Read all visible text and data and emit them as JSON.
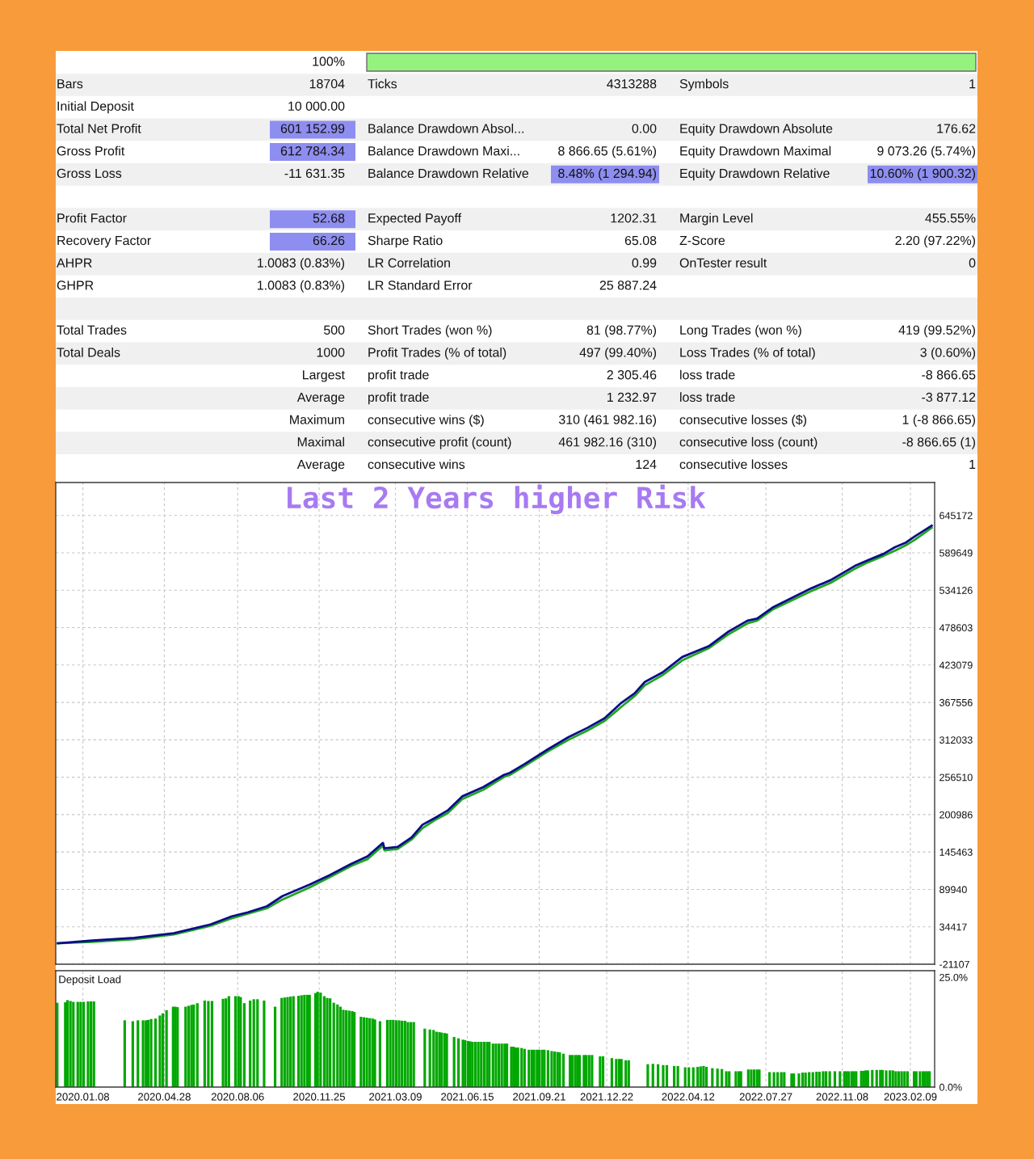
{
  "chart_data": [
    {
      "type": "other",
      "annotations": [
        "100%",
        "Bars",
        "18704",
        "Ticks",
        "4313288",
        "Symbols",
        "1",
        "Initial Deposit",
        "10 000.00",
        "Total Net Profit",
        "601 152.99",
        "Balance Drawdown Absol...",
        "0.00",
        "Equity Drawdown Absolute",
        "176.62",
        "Gross Profit",
        "612 784.34",
        "Balance Drawdown Maxi...",
        "8 866.65 (5.61%)",
        "Equity Drawdown Maximal",
        "9 073.26 (5.74%)",
        "Gross Loss",
        "-11 631.35",
        "Balance Drawdown Relative",
        "8.48% (1 294.94)",
        "Equity Drawdown Relative",
        "10.60% (1 900.32)",
        "Profit Factor",
        "52.68",
        "Expected Payoff",
        "1202.31",
        "Margin Level",
        "455.55%",
        "Recovery Factor",
        "66.26",
        "Sharpe Ratio",
        "65.08",
        "Z-Score",
        "2.20 (97.22%)",
        "AHPR",
        "1.0083 (0.83%)",
        "LR Correlation",
        "0.99",
        "OnTester result",
        "0",
        "GHPR",
        "1.0083 (0.83%)",
        "LR Standard Error",
        "25 887.24",
        "Total Trades",
        "500",
        "Short Trades (won %)",
        "81 (98.77%)",
        "Long Trades (won %)",
        "419 (99.52%)",
        "Total Deals",
        "1000",
        "Profit Trades (% of total)",
        "497 (99.40%)",
        "Loss Trades (% of total)",
        "3 (0.60%)",
        "Largest",
        "profit trade",
        "2 305.46",
        "loss trade",
        "-8 866.65",
        "Average",
        "profit trade",
        "1 232.97",
        "loss trade",
        "-3 877.12",
        "Maximum",
        "consecutive wins ($)",
        "310 (461 982.16)",
        "consecutive losses ($)",
        "1 (-8 866.65)",
        "Maximal",
        "consecutive profit (count)",
        "461 982.16 (310)",
        "consecutive loss (count)",
        "-8 866.65 (1)",
        "Average",
        "consecutive wins",
        "124",
        "consecutive losses",
        "1"
      ]
    },
    {
      "type": "line",
      "title": "Last 2 Years higher Risk",
      "x": [
        "2019-12-05",
        "2020-01-21",
        "2020-03-18",
        "2020-05-11",
        "2020-06-30",
        "2020-07-29",
        "2020-08-20",
        "2020-09-15",
        "2020-10-06",
        "2020-11-12",
        "2020-12-09",
        "2021-01-08",
        "2021-01-30",
        "2021-02-20",
        "2021-02-22",
        "2021-03-12",
        "2021-03-31",
        "2021-04-15",
        "2021-05-02",
        "2021-05-19",
        "2021-06-08",
        "2021-07-07",
        "2021-08-04",
        "2021-08-12",
        "2021-09-01",
        "2021-10-03",
        "2021-10-31",
        "2021-11-26",
        "2021-12-19",
        "2022-01-11",
        "2022-01-29",
        "2022-02-12",
        "2022-03-08",
        "2022-04-04",
        "2022-05-10",
        "2022-06-05",
        "2022-07-02",
        "2022-07-15",
        "2022-08-06",
        "2022-09-27",
        "2022-10-23",
        "2022-11-25",
        "2022-12-14",
        "2023-01-03",
        "2023-01-19",
        "2023-02-03",
        "2023-02-15",
        "2023-03-10"
      ],
      "series": [
        {
          "color": "#1fa61f",
          "values": [
            10000,
            12000,
            16000,
            23000,
            36000,
            47000,
            54000,
            62000,
            75000,
            93000,
            108000,
            125000,
            135000,
            155000,
            148000,
            150000,
            164000,
            181000,
            193000,
            203000,
            224000,
            238000,
            257000,
            260000,
            273000,
            295000,
            312000,
            326000,
            340000,
            361000,
            377000,
            393000,
            408000,
            430000,
            448000,
            468000,
            485000,
            489000,
            506000,
            533000,
            545000,
            566000,
            576000,
            585000,
            593000,
            601000,
            609000,
            627000
          ]
        },
        {
          "color": "#0c0c8a",
          "values": [
            10000,
            14000,
            18000,
            25000,
            38000,
            50000,
            56000,
            65000,
            80000,
            97000,
            111000,
            128000,
            139000,
            159000,
            151000,
            153000,
            167000,
            186000,
            196000,
            207000,
            228000,
            242000,
            260000,
            263000,
            276000,
            298000,
            316000,
            330000,
            344000,
            367000,
            381000,
            398000,
            412000,
            435000,
            451000,
            472000,
            489000,
            492000,
            509000,
            537000,
            549000,
            570000,
            579000,
            588000,
            598000,
            605000,
            614000,
            630000
          ]
        }
      ],
      "xlim": [
        "2019-12-02",
        "2023-03-14"
      ],
      "xticks": [
        {
          "value": "2020-01-08",
          "label": null
        },
        {
          "value": "2020-04-28",
          "label": null
        },
        {
          "value": "2020-08-06",
          "label": null
        },
        {
          "value": "2020-11-25",
          "label": null
        },
        {
          "value": "2021-03-09",
          "label": null
        },
        {
          "value": "2021-06-15",
          "label": null
        },
        {
          "value": "2021-09-21",
          "label": null
        },
        {
          "value": "2021-12-22",
          "label": null
        },
        {
          "value": "2022-04-12",
          "label": null
        },
        {
          "value": "2022-07-27",
          "label": null
        },
        {
          "value": "2022-11-08",
          "label": null
        },
        {
          "value": "2023-02-09",
          "label": null
        }
      ],
      "ylim": [
        -21107,
        694000
      ],
      "yticks": [
        -21107,
        34417,
        89940,
        145463,
        200986,
        256510,
        312033,
        367556,
        423079,
        478603,
        534126,
        589649,
        645172
      ],
      "grid": true,
      "tick_labels": "y"
    },
    {
      "type": "bar",
      "title": "Deposit Load",
      "color": "#00a800",
      "x": [
        "2019-12-04",
        "2019-12-15",
        "2019-12-18",
        "2019-12-22",
        "2019-12-26",
        "2020-01-01",
        "2020-01-05",
        "2020-01-09",
        "2020-01-15",
        "2020-01-19",
        "2020-01-23",
        "2020-03-05",
        "2020-03-16",
        "2020-03-23",
        "2020-03-30",
        "2020-04-03",
        "2020-04-06",
        "2020-04-10",
        "2020-04-16",
        "2020-04-22",
        "2020-04-26",
        "2020-05-01",
        "2020-05-10",
        "2020-05-13",
        "2020-05-16",
        "2020-05-27",
        "2020-05-31",
        "2020-06-04",
        "2020-06-07",
        "2020-06-12",
        "2020-06-22",
        "2020-06-27",
        "2020-07-02",
        "2020-07-17",
        "2020-07-21",
        "2020-07-25",
        "2020-08-03",
        "2020-08-07",
        "2020-08-10",
        "2020-08-15",
        "2020-08-23",
        "2020-08-28",
        "2020-09-02",
        "2020-09-11",
        "2020-09-26",
        "2020-10-05",
        "2020-10-09",
        "2020-10-13",
        "2020-10-17",
        "2020-10-21",
        "2020-10-28",
        "2020-11-01",
        "2020-11-05",
        "2020-11-09",
        "2020-11-12",
        "2020-11-20",
        "2020-11-23",
        "2020-11-27",
        "2020-12-02",
        "2020-12-06",
        "2020-12-10",
        "2020-12-15",
        "2020-12-20",
        "2020-12-24",
        "2020-12-28",
        "2021-01-01",
        "2021-01-05",
        "2021-01-09",
        "2021-01-12",
        "2021-01-21",
        "2021-01-25",
        "2021-01-29",
        "2021-02-02",
        "2021-02-06",
        "2021-02-09",
        "2021-02-16",
        "2021-02-26",
        "2021-03-02",
        "2021-03-06",
        "2021-03-10",
        "2021-03-14",
        "2021-03-18",
        "2021-03-22",
        "2021-03-26",
        "2021-03-30",
        "2021-04-03",
        "2021-04-18",
        "2021-04-25",
        "2021-04-30",
        "2021-05-04",
        "2021-05-08",
        "2021-05-11",
        "2021-05-15",
        "2021-05-18",
        "2021-05-28",
        "2021-06-03",
        "2021-06-09",
        "2021-06-12",
        "2021-06-16",
        "2021-06-19",
        "2021-06-22",
        "2021-06-26",
        "2021-06-30",
        "2021-07-04",
        "2021-07-08",
        "2021-07-12",
        "2021-07-15",
        "2021-07-20",
        "2021-07-24",
        "2021-07-28",
        "2021-08-01",
        "2021-08-05",
        "2021-08-08",
        "2021-08-14",
        "2021-08-17",
        "2021-08-20",
        "2021-08-23",
        "2021-08-28",
        "2021-09-01",
        "2021-09-07",
        "2021-09-11",
        "2021-09-14",
        "2021-09-18",
        "2021-09-21",
        "2021-09-25",
        "2021-09-28",
        "2021-10-03",
        "2021-10-08",
        "2021-10-12",
        "2021-10-16",
        "2021-10-19",
        "2021-10-24",
        "2021-11-02",
        "2021-11-05",
        "2021-11-09",
        "2021-11-12",
        "2021-11-15",
        "2021-11-21",
        "2021-11-24",
        "2021-11-28",
        "2021-12-02",
        "2021-12-13",
        "2021-12-17",
        "2021-12-29",
        "2022-01-04",
        "2022-01-08",
        "2022-01-11",
        "2022-01-17",
        "2022-01-21",
        "2022-02-16",
        "2022-02-23",
        "2022-03-02",
        "2022-03-09",
        "2022-03-14",
        "2022-03-24",
        "2022-03-29",
        "2022-04-08",
        "2022-04-13",
        "2022-04-19",
        "2022-04-25",
        "2022-04-29",
        "2022-05-03",
        "2022-05-07",
        "2022-05-15",
        "2022-05-22",
        "2022-05-28",
        "2022-06-03",
        "2022-06-07",
        "2022-06-16",
        "2022-06-20",
        "2022-06-23",
        "2022-07-03",
        "2022-07-07",
        "2022-07-11",
        "2022-07-15",
        "2022-07-18",
        "2022-08-01",
        "2022-08-07",
        "2022-08-12",
        "2022-08-17",
        "2022-08-21",
        "2022-08-31",
        "2022-09-03",
        "2022-09-10",
        "2022-09-15",
        "2022-09-19",
        "2022-09-24",
        "2022-09-29",
        "2022-10-04",
        "2022-10-08",
        "2022-10-13",
        "2022-10-17",
        "2022-10-22",
        "2022-10-29",
        "2022-11-05",
        "2022-11-11",
        "2022-11-14",
        "2022-11-17",
        "2022-11-21",
        "2022-11-24",
        "2022-11-27",
        "2022-12-04",
        "2022-12-07",
        "2022-12-10",
        "2022-12-13",
        "2022-12-19",
        "2022-12-25",
        "2022-12-30",
        "2023-01-02",
        "2023-01-07",
        "2023-01-12",
        "2023-01-16",
        "2023-01-20",
        "2023-01-24",
        "2023-01-28",
        "2023-02-01",
        "2023-02-05",
        "2023-02-14",
        "2023-02-17",
        "2023-02-22",
        "2023-02-26",
        "2023-03-01",
        "2023-03-04",
        "2023-03-07"
      ],
      "values": [
        19.2,
        19.3,
        19.8,
        19.6,
        19.4,
        19.4,
        19.4,
        19.4,
        19.5,
        19.5,
        19.5,
        15.2,
        15.0,
        15.2,
        15.2,
        15.2,
        15.3,
        15.5,
        15.6,
        16.3,
        16.8,
        17.5,
        18.3,
        18.3,
        18.2,
        18.3,
        18.5,
        18.7,
        18.8,
        19.1,
        19.7,
        19.6,
        19.6,
        20.1,
        20.2,
        20.7,
        20.7,
        20.7,
        20.5,
        19.1,
        19.7,
        20.0,
        20.0,
        19.7,
        18.3,
        20.3,
        20.4,
        20.5,
        20.6,
        20.7,
        20.8,
        20.9,
        21.0,
        21.0,
        21.0,
        21.4,
        21.7,
        21.5,
        20.7,
        20.3,
        20.2,
        19.2,
        18.8,
        18.3,
        17.6,
        17.5,
        17.4,
        17.3,
        17.1,
        16.0,
        15.9,
        15.8,
        15.7,
        15.6,
        15.4,
        15.0,
        15.3,
        15.3,
        15.3,
        15.2,
        15.2,
        15.1,
        15.1,
        14.8,
        14.8,
        14.8,
        13.3,
        13.1,
        13.0,
        12.6,
        12.5,
        12.4,
        12.3,
        12.2,
        11.4,
        11.1,
        10.8,
        10.7,
        10.5,
        10.4,
        10.3,
        10.3,
        10.3,
        10.3,
        10.3,
        10.3,
        10.3,
        9.9,
        9.9,
        9.9,
        9.9,
        9.9,
        9.9,
        9.2,
        9.2,
        9.0,
        9.0,
        8.9,
        8.7,
        8.5,
        8.5,
        8.5,
        8.5,
        8.5,
        8.5,
        8.5,
        8.4,
        8.2,
        8.1,
        8.0,
        7.9,
        7.6,
        7.3,
        7.3,
        7.3,
        7.3,
        7.3,
        7.3,
        7.3,
        7.3,
        7.3,
        7.0,
        7.0,
        6.6,
        6.4,
        6.4,
        6.4,
        6.1,
        6.1,
        5.2,
        5.3,
        5.2,
        5.0,
        5.0,
        4.8,
        4.8,
        4.5,
        4.5,
        4.5,
        4.6,
        4.7,
        4.8,
        4.6,
        4.3,
        4.2,
        4.1,
        3.6,
        3.6,
        3.6,
        3.6,
        3.6,
        4.0,
        4.0,
        4.0,
        4.0,
        4.0,
        3.4,
        3.4,
        3.4,
        3.4,
        3.4,
        3.1,
        3.1,
        3.1,
        3.3,
        3.3,
        3.4,
        3.4,
        3.5,
        3.5,
        3.6,
        3.6,
        3.6,
        3.6,
        3.6,
        3.6,
        3.6,
        3.6,
        3.6,
        3.6,
        3.6,
        3.7,
        3.7,
        3.8,
        3.8,
        3.9,
        3.9,
        3.9,
        3.9,
        3.8,
        3.8,
        3.8,
        3.6,
        3.6,
        3.6,
        3.6,
        3.6,
        3.6,
        3.6,
        3.6,
        3.6,
        3.6,
        3.6,
        3.6
      ],
      "xlim": [
        "2019-12-02",
        "2023-03-14"
      ],
      "xticks": [
        {
          "value": "2020-01-08",
          "label": "2020.01.08"
        },
        {
          "value": "2020-04-28",
          "label": "2020.04.28"
        },
        {
          "value": "2020-08-06",
          "label": "2020.08.06"
        },
        {
          "value": "2020-11-25",
          "label": "2020.11.25"
        },
        {
          "value": "2021-03-09",
          "label": "2021.03.09"
        },
        {
          "value": "2021-06-15",
          "label": "2021.06.15"
        },
        {
          "value": "2021-09-21",
          "label": "2021.09.21"
        },
        {
          "value": "2021-12-22",
          "label": "2021.12.22"
        },
        {
          "value": "2022-04-12",
          "label": "2022.04.12"
        },
        {
          "value": "2022-07-27",
          "label": "2022.07.27"
        },
        {
          "value": "2022-11-08",
          "label": "2022.11.08"
        },
        {
          "value": "2023-02-09",
          "label": "2023.02.09"
        }
      ],
      "ylim": [
        0,
        26.5
      ],
      "yticks": [
        {
          "value": 0,
          "label": "0.0%"
        },
        {
          "value": 25,
          "label": "25.0%"
        }
      ],
      "grid": "x"
    }
  ]
}
